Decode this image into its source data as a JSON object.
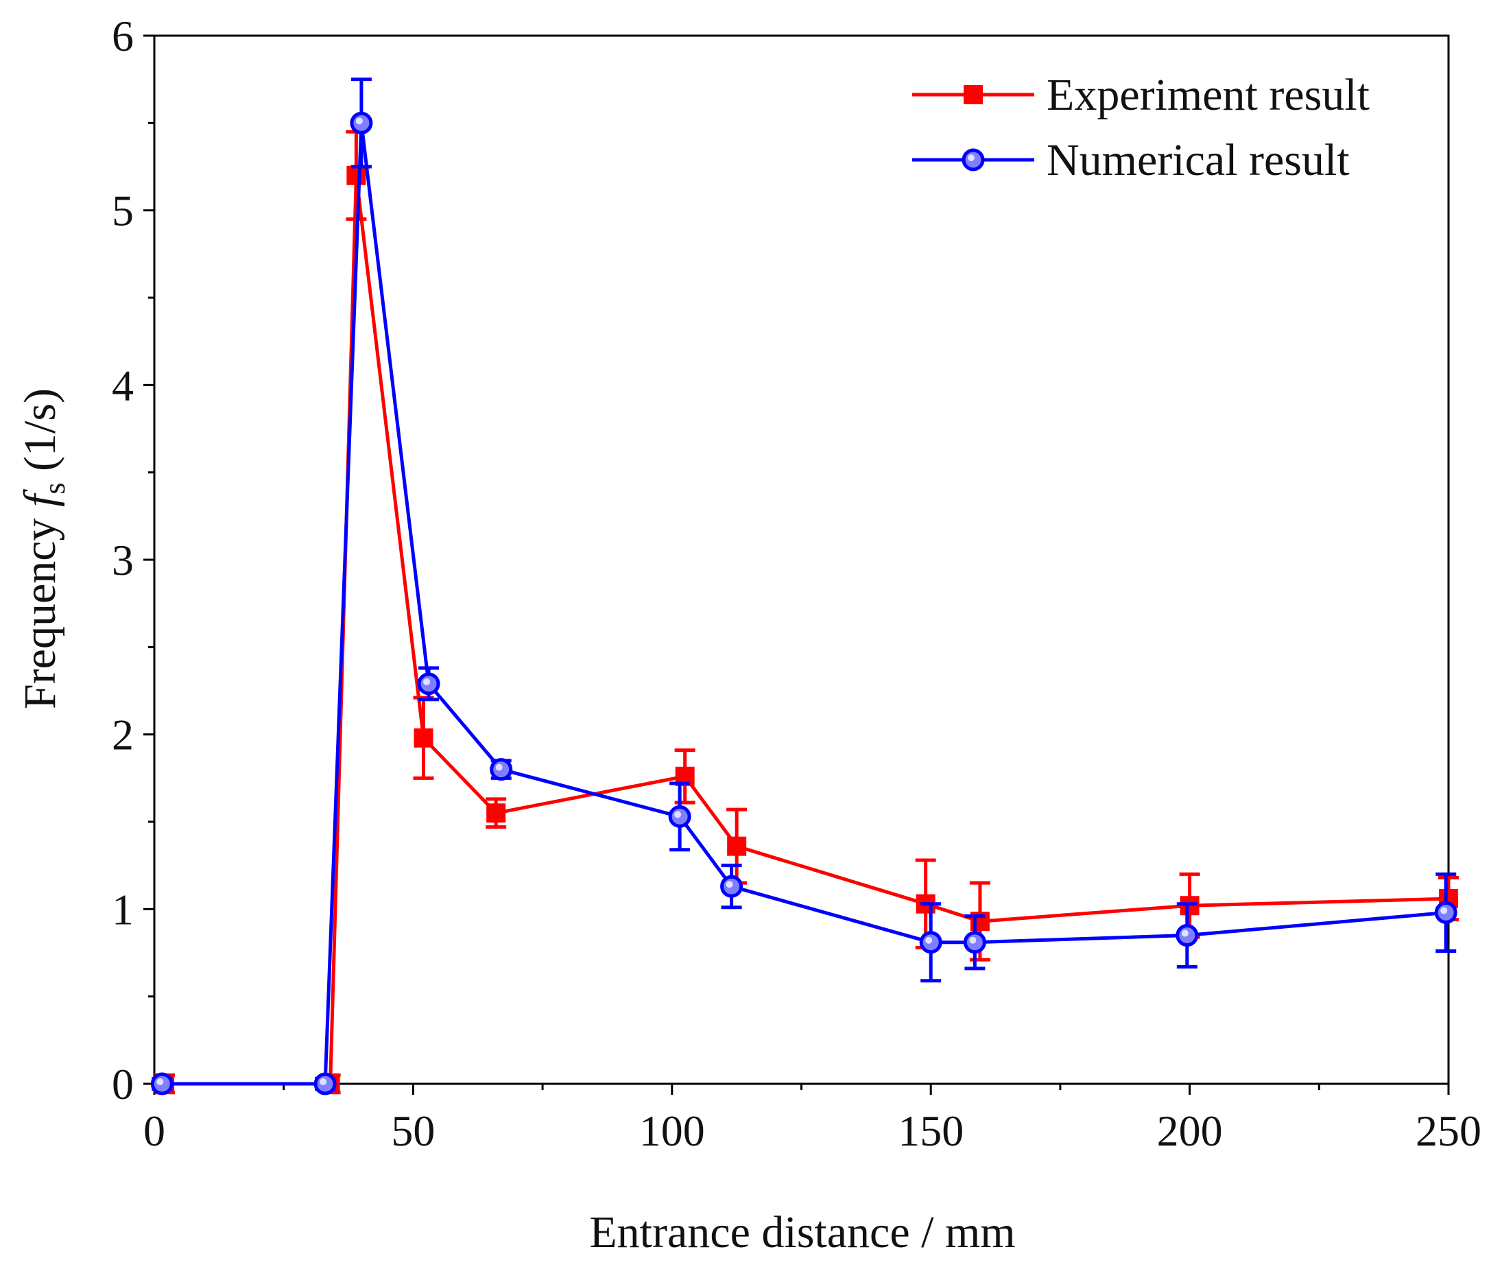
{
  "chart_data": {
    "type": "line",
    "xlabel": "Entrance distance / mm",
    "ylabel": {
      "main": "Frequency ",
      "symbol": "f",
      "subscript": "s",
      "unit": " (1/s)"
    },
    "xlim": [
      0,
      250
    ],
    "ylim": [
      0,
      6
    ],
    "xticks": [
      "0",
      "50",
      "100",
      "150",
      "200",
      "250"
    ],
    "yticks": [
      "0",
      "1",
      "2",
      "3",
      "4",
      "5",
      "6"
    ],
    "grid": false,
    "legend_position": "top-right",
    "series": [
      {
        "name": "Experiment result",
        "color": "#ff0000",
        "marker": "square",
        "points": [
          {
            "x": 2,
            "y": 0,
            "err": 0.05
          },
          {
            "x": 34,
            "y": 0,
            "err": 0.05
          },
          {
            "x": 39,
            "y": 5.2,
            "err": 0.25
          },
          {
            "x": 52,
            "y": 1.98,
            "err": 0.23
          },
          {
            "x": 66,
            "y": 1.55,
            "err": 0.08
          },
          {
            "x": 102.5,
            "y": 1.76,
            "err": 0.15
          },
          {
            "x": 112.5,
            "y": 1.36,
            "err": 0.21
          },
          {
            "x": 149,
            "y": 1.03,
            "err": 0.25
          },
          {
            "x": 159.5,
            "y": 0.93,
            "err": 0.22
          },
          {
            "x": 200,
            "y": 1.02,
            "err": 0.18
          },
          {
            "x": 250,
            "y": 1.06,
            "err": 0.12
          }
        ]
      },
      {
        "name": "Numerical result",
        "color": "#0000ff",
        "marker": "circle",
        "points": [
          {
            "x": 1.5,
            "y": 0,
            "err": 0.03
          },
          {
            "x": 33,
            "y": 0,
            "err": 0.03
          },
          {
            "x": 40,
            "y": 5.5,
            "err": 0.25
          },
          {
            "x": 53,
            "y": 2.29,
            "err": 0.09
          },
          {
            "x": 67,
            "y": 1.8,
            "err": 0.05
          },
          {
            "x": 101.5,
            "y": 1.53,
            "err": 0.19
          },
          {
            "x": 111.5,
            "y": 1.13,
            "err": 0.12
          },
          {
            "x": 150,
            "y": 0.81,
            "err": 0.22
          },
          {
            "x": 158.5,
            "y": 0.81,
            "err": 0.15
          },
          {
            "x": 199.5,
            "y": 0.85,
            "err": 0.18
          },
          {
            "x": 249.5,
            "y": 0.98,
            "err": 0.22
          }
        ]
      }
    ]
  }
}
